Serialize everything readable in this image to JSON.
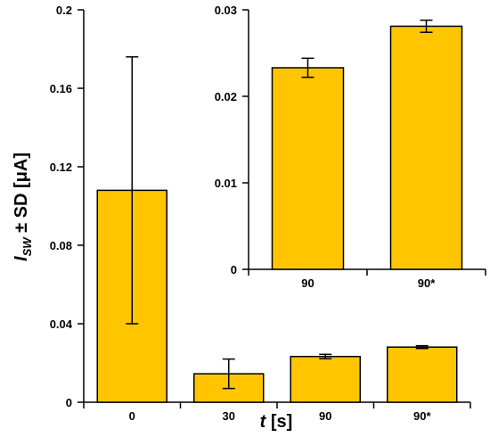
{
  "colors": {
    "bar": "#FFC500",
    "stroke": "#000000"
  },
  "chart_data": [
    {
      "type": "bar",
      "categories": [
        "0",
        "30",
        "90",
        "90*"
      ],
      "values": [
        0.108,
        0.0145,
        0.0233,
        0.0281
      ],
      "errors": [
        0.068,
        0.0075,
        0.0011,
        0.0007
      ],
      "ylim": [
        0,
        0.2
      ],
      "yticks": [
        "0",
        "0.04",
        "0.08",
        "0.12",
        "0.16",
        "0.2"
      ],
      "ylabel": {
        "main": "I",
        "sub": "SW",
        "rest": " ± SD [μA]"
      },
      "xlabel": {
        "main": "t",
        "rest": " [s]"
      }
    },
    {
      "type": "bar",
      "categories": [
        "90",
        "90*"
      ],
      "values": [
        0.0233,
        0.0281
      ],
      "errors": [
        0.0011,
        0.0007
      ],
      "ylim": [
        0,
        0.03
      ],
      "yticks": [
        "0",
        "0.01",
        "0.02",
        "0.03"
      ]
    }
  ]
}
